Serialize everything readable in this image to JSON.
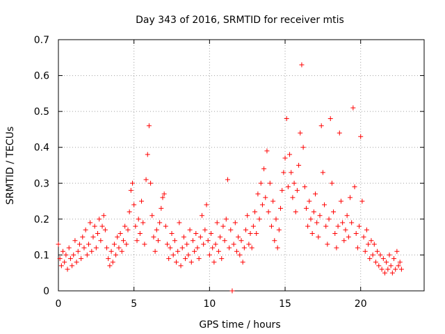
{
  "chart_data": {
    "type": "scatter",
    "title": "Day 343 of 2016, SRMTID for receiver mtis",
    "xlabel": "GPS time / hours",
    "ylabel": "SRMTID / TECUs",
    "xlim": [
      0,
      24.2
    ],
    "ylim": [
      0,
      0.7
    ],
    "xticks": [
      0,
      5,
      10,
      15,
      20
    ],
    "yticks": [
      0,
      0.1,
      0.2,
      0.3,
      0.4,
      0.5,
      0.6,
      0.7
    ],
    "xtick_labels": [
      "0",
      "5",
      "10",
      "15",
      "20"
    ],
    "ytick_labels": [
      "0",
      "0.1",
      "0.2",
      "0.3",
      "0.4",
      "0.5",
      "0.6",
      "0.7"
    ],
    "grid": true,
    "marker": "+",
    "color": "#ff0000",
    "series": [
      {
        "name": "SRMTID",
        "points": [
          [
            0.0,
            0.13
          ],
          [
            0.1,
            0.09
          ],
          [
            0.2,
            0.07
          ],
          [
            0.3,
            0.11
          ],
          [
            0.4,
            0.08
          ],
          [
            0.5,
            0.1
          ],
          [
            0.6,
            0.06
          ],
          [
            0.7,
            0.12
          ],
          [
            0.8,
            0.09
          ],
          [
            0.9,
            0.07
          ],
          [
            1.0,
            0.1
          ],
          [
            1.1,
            0.14
          ],
          [
            1.2,
            0.08
          ],
          [
            1.3,
            0.11
          ],
          [
            1.4,
            0.13
          ],
          [
            1.5,
            0.09
          ],
          [
            1.6,
            0.15
          ],
          [
            1.7,
            0.12
          ],
          [
            1.8,
            0.17
          ],
          [
            1.9,
            0.1
          ],
          [
            2.0,
            0.13
          ],
          [
            2.1,
            0.19
          ],
          [
            2.2,
            0.11
          ],
          [
            2.3,
            0.15
          ],
          [
            2.4,
            0.18
          ],
          [
            2.5,
            0.12
          ],
          [
            2.6,
            0.16
          ],
          [
            2.7,
            0.2
          ],
          [
            2.8,
            0.14
          ],
          [
            2.9,
            0.18
          ],
          [
            3.0,
            0.21
          ],
          [
            3.1,
            0.17
          ],
          [
            3.2,
            0.12
          ],
          [
            3.3,
            0.09
          ],
          [
            3.4,
            0.07
          ],
          [
            3.5,
            0.11
          ],
          [
            3.6,
            0.08
          ],
          [
            3.7,
            0.13
          ],
          [
            3.8,
            0.1
          ],
          [
            3.9,
            0.15
          ],
          [
            4.0,
            0.12
          ],
          [
            4.1,
            0.16
          ],
          [
            4.2,
            0.11
          ],
          [
            4.3,
            0.14
          ],
          [
            4.4,
            0.18
          ],
          [
            4.5,
            0.13
          ],
          [
            4.6,
            0.17
          ],
          [
            4.7,
            0.22
          ],
          [
            4.8,
            0.28
          ],
          [
            4.9,
            0.3
          ],
          [
            5.0,
            0.24
          ],
          [
            5.1,
            0.18
          ],
          [
            5.2,
            0.14
          ],
          [
            5.3,
            0.2
          ],
          [
            5.4,
            0.16
          ],
          [
            5.5,
            0.25
          ],
          [
            5.6,
            0.19
          ],
          [
            5.7,
            0.13
          ],
          [
            5.8,
            0.31
          ],
          [
            5.9,
            0.38
          ],
          [
            6.0,
            0.46
          ],
          [
            6.1,
            0.3
          ],
          [
            6.2,
            0.21
          ],
          [
            6.3,
            0.15
          ],
          [
            6.4,
            0.11
          ],
          [
            6.5,
            0.17
          ],
          [
            6.6,
            0.14
          ],
          [
            6.7,
            0.19
          ],
          [
            6.8,
            0.23
          ],
          [
            6.9,
            0.26
          ],
          [
            7.0,
            0.27
          ],
          [
            7.1,
            0.18
          ],
          [
            7.2,
            0.13
          ],
          [
            7.3,
            0.09
          ],
          [
            7.4,
            0.12
          ],
          [
            7.5,
            0.16
          ],
          [
            7.6,
            0.1
          ],
          [
            7.7,
            0.14
          ],
          [
            7.8,
            0.08
          ],
          [
            7.9,
            0.11
          ],
          [
            8.0,
            0.19
          ],
          [
            8.1,
            0.07
          ],
          [
            8.2,
            0.12
          ],
          [
            8.3,
            0.15
          ],
          [
            8.4,
            0.09
          ],
          [
            8.5,
            0.13
          ],
          [
            8.6,
            0.1
          ],
          [
            8.7,
            0.17
          ],
          [
            8.8,
            0.08
          ],
          [
            8.9,
            0.14
          ],
          [
            9.0,
            0.11
          ],
          [
            9.1,
            0.16
          ],
          [
            9.2,
            0.12
          ],
          [
            9.3,
            0.09
          ],
          [
            9.4,
            0.15
          ],
          [
            9.5,
            0.21
          ],
          [
            9.6,
            0.13
          ],
          [
            9.7,
            0.17
          ],
          [
            9.8,
            0.24
          ],
          [
            9.9,
            0.14
          ],
          [
            10.0,
            0.1
          ],
          [
            10.1,
            0.16
          ],
          [
            10.2,
            0.12
          ],
          [
            10.3,
            0.08
          ],
          [
            10.4,
            0.13
          ],
          [
            10.5,
            0.19
          ],
          [
            10.6,
            0.11
          ],
          [
            10.7,
            0.15
          ],
          [
            10.8,
            0.09
          ],
          [
            10.9,
            0.18
          ],
          [
            11.0,
            0.14
          ],
          [
            11.1,
            0.2
          ],
          [
            11.2,
            0.31
          ],
          [
            11.3,
            0.12
          ],
          [
            11.4,
            0.17
          ],
          [
            11.5,
            0.0
          ],
          [
            11.6,
            0.13
          ],
          [
            11.7,
            0.19
          ],
          [
            11.8,
            0.11
          ],
          [
            11.9,
            0.15
          ],
          [
            12.0,
            0.1
          ],
          [
            12.1,
            0.14
          ],
          [
            12.2,
            0.08
          ],
          [
            12.3,
            0.12
          ],
          [
            12.4,
            0.17
          ],
          [
            12.5,
            0.21
          ],
          [
            12.6,
            0.13
          ],
          [
            12.7,
            0.16
          ],
          [
            12.8,
            0.12
          ],
          [
            12.9,
            0.18
          ],
          [
            13.0,
            0.22
          ],
          [
            13.1,
            0.16
          ],
          [
            13.2,
            0.27
          ],
          [
            13.3,
            0.2
          ],
          [
            13.4,
            0.3
          ],
          [
            13.5,
            0.24
          ],
          [
            13.6,
            0.34
          ],
          [
            13.7,
            0.26
          ],
          [
            13.8,
            0.39
          ],
          [
            13.9,
            0.22
          ],
          [
            14.0,
            0.3
          ],
          [
            14.1,
            0.18
          ],
          [
            14.2,
            0.25
          ],
          [
            14.3,
            0.14
          ],
          [
            14.4,
            0.2
          ],
          [
            14.5,
            0.12
          ],
          [
            14.6,
            0.17
          ],
          [
            14.7,
            0.23
          ],
          [
            14.8,
            0.28
          ],
          [
            14.9,
            0.33
          ],
          [
            15.0,
            0.37
          ],
          [
            15.1,
            0.48
          ],
          [
            15.2,
            0.29
          ],
          [
            15.3,
            0.38
          ],
          [
            15.4,
            0.33
          ],
          [
            15.5,
            0.26
          ],
          [
            15.6,
            0.3
          ],
          [
            15.7,
            0.22
          ],
          [
            15.8,
            0.28
          ],
          [
            15.9,
            0.35
          ],
          [
            16.0,
            0.44
          ],
          [
            16.1,
            0.63
          ],
          [
            16.2,
            0.4
          ],
          [
            16.3,
            0.29
          ],
          [
            16.4,
            0.23
          ],
          [
            16.5,
            0.18
          ],
          [
            16.6,
            0.25
          ],
          [
            16.7,
            0.2
          ],
          [
            16.8,
            0.16
          ],
          [
            16.9,
            0.22
          ],
          [
            17.0,
            0.27
          ],
          [
            17.1,
            0.19
          ],
          [
            17.2,
            0.15
          ],
          [
            17.3,
            0.21
          ],
          [
            17.4,
            0.46
          ],
          [
            17.5,
            0.33
          ],
          [
            17.6,
            0.24
          ],
          [
            17.7,
            0.18
          ],
          [
            17.8,
            0.13
          ],
          [
            17.9,
            0.2
          ],
          [
            18.0,
            0.48
          ],
          [
            18.1,
            0.3
          ],
          [
            18.2,
            0.22
          ],
          [
            18.3,
            0.16
          ],
          [
            18.4,
            0.12
          ],
          [
            18.5,
            0.18
          ],
          [
            18.6,
            0.44
          ],
          [
            18.7,
            0.25
          ],
          [
            18.8,
            0.19
          ],
          [
            18.9,
            0.14
          ],
          [
            19.0,
            0.17
          ],
          [
            19.1,
            0.21
          ],
          [
            19.2,
            0.15
          ],
          [
            19.3,
            0.26
          ],
          [
            19.4,
            0.19
          ],
          [
            19.5,
            0.51
          ],
          [
            19.6,
            0.29
          ],
          [
            19.7,
            0.16
          ],
          [
            19.8,
            0.12
          ],
          [
            19.9,
            0.18
          ],
          [
            20.0,
            0.43
          ],
          [
            20.1,
            0.25
          ],
          [
            20.2,
            0.15
          ],
          [
            20.3,
            0.11
          ],
          [
            20.4,
            0.17
          ],
          [
            20.5,
            0.13
          ],
          [
            20.6,
            0.09
          ],
          [
            20.7,
            0.14
          ],
          [
            20.8,
            0.1
          ],
          [
            20.9,
            0.13
          ],
          [
            21.0,
            0.08
          ],
          [
            21.1,
            0.11
          ],
          [
            21.2,
            0.07
          ],
          [
            21.3,
            0.1
          ],
          [
            21.4,
            0.06
          ],
          [
            21.5,
            0.09
          ],
          [
            21.6,
            0.05
          ],
          [
            21.7,
            0.08
          ],
          [
            21.8,
            0.06
          ],
          [
            21.9,
            0.1
          ],
          [
            22.0,
            0.07
          ],
          [
            22.1,
            0.05
          ],
          [
            22.2,
            0.09
          ],
          [
            22.3,
            0.06
          ],
          [
            22.4,
            0.11
          ],
          [
            22.5,
            0.07
          ],
          [
            22.6,
            0.08
          ],
          [
            22.7,
            0.06
          ]
        ]
      }
    ]
  }
}
